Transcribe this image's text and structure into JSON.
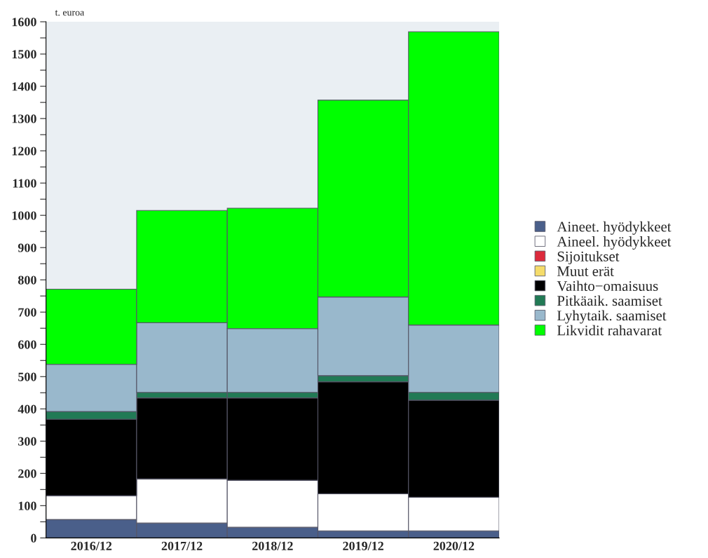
{
  "chart_data": {
    "type": "bar",
    "stacked": true,
    "ylabel": "t. euroa",
    "categories": [
      "2016/12",
      "2017/12",
      "2018/12",
      "2019/12",
      "2020/12"
    ],
    "series": [
      {
        "name": "Aineet. hyödykkeet",
        "color": "#4a5f8a",
        "values": [
          57,
          46,
          33,
          22,
          22
        ]
      },
      {
        "name": "Aineel. hyödykkeet",
        "color": "#ffffff",
        "values": [
          74,
          137,
          146,
          115,
          104
        ]
      },
      {
        "name": "Sijoitukset",
        "color": "#dc2a3c",
        "values": [
          0,
          0,
          0,
          0,
          0
        ]
      },
      {
        "name": "Muut erät",
        "color": "#f5dc6a",
        "values": [
          0,
          0,
          0,
          0,
          0
        ]
      },
      {
        "name": "Vaihto−omaisuus",
        "color": "#000000",
        "values": [
          237,
          251,
          255,
          347,
          301
        ]
      },
      {
        "name": "Pitkäaik. saamiset",
        "color": "#217a55",
        "values": [
          24,
          17,
          17,
          19,
          24
        ]
      },
      {
        "name": "Lyhytaik. saamiset",
        "color": "#99b8cc",
        "values": [
          146,
          216,
          198,
          244,
          209
        ]
      },
      {
        "name": "Likvidit rahavarat",
        "color": "#00ff00",
        "values": [
          233,
          348,
          373,
          610,
          909
        ]
      }
    ],
    "ylim": [
      0,
      1600
    ],
    "yticks": [
      0,
      {
        "value": 50,
        "label": null
      },
      100,
      {
        "value": 150,
        "label": null
      },
      200,
      {
        "value": 250,
        "label": null
      },
      300,
      {
        "value": 350,
        "label": null
      },
      400,
      {
        "value": 450,
        "label": null
      },
      500,
      {
        "value": 550,
        "label": null
      },
      600,
      {
        "value": 650,
        "label": null
      },
      700,
      {
        "value": 750,
        "label": null
      },
      800,
      {
        "value": 850,
        "label": null
      },
      900,
      {
        "value": 950,
        "label": null
      },
      1000,
      {
        "value": 1050,
        "label": null
      },
      1100,
      {
        "value": 1150,
        "label": null
      },
      1200,
      {
        "value": 1250,
        "label": null
      },
      1300,
      {
        "value": 1350,
        "label": null
      },
      1400,
      {
        "value": 1450,
        "label": null
      },
      1500,
      {
        "value": 1550,
        "label": null
      },
      1600
    ],
    "grid": false,
    "legend": "right"
  }
}
